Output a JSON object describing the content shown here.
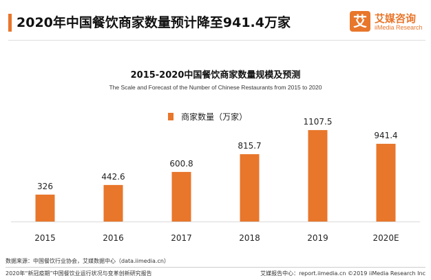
{
  "header": {
    "title": "2020年中国餐饮商家数量预计降至941.4万家"
  },
  "logo": {
    "mark": "艾",
    "name_cn": "艾媒咨询",
    "name_en": "iiMedia Research"
  },
  "colors": {
    "accent": "#e8762b",
    "bar": "#e8762b"
  },
  "chart_data": {
    "type": "bar",
    "title": "2015-2020中国餐饮商家数量规模及预测",
    "subtitle": "The Scale and Forecast of the Number of Chinese Restaurants from 2015 to 2020",
    "categories": [
      "2015",
      "2016",
      "2017",
      "2018",
      "2019",
      "2020E"
    ],
    "series": [
      {
        "name": "商家数量（万家）",
        "values": [
          326,
          442.6,
          600.8,
          815.7,
          1107.5,
          941.4
        ],
        "labels": [
          "326",
          "442.6",
          "600.8",
          "815.7",
          "1107.5",
          "941.4"
        ]
      }
    ],
    "ylim": [
      0,
      1350
    ],
    "grid": false,
    "legend_position": "top-center"
  },
  "footer": {
    "source": "数据来源：中国餐饮行业协会，艾媒数据中心（data.iimedia.cn）",
    "report_name": "2020年“新冠疫期”中国餐饮业运行状况与变革创新研究报告",
    "report_site": "艾媒报告中心：report.iimedia.cn ©2019 iiMedia Research Inc"
  }
}
